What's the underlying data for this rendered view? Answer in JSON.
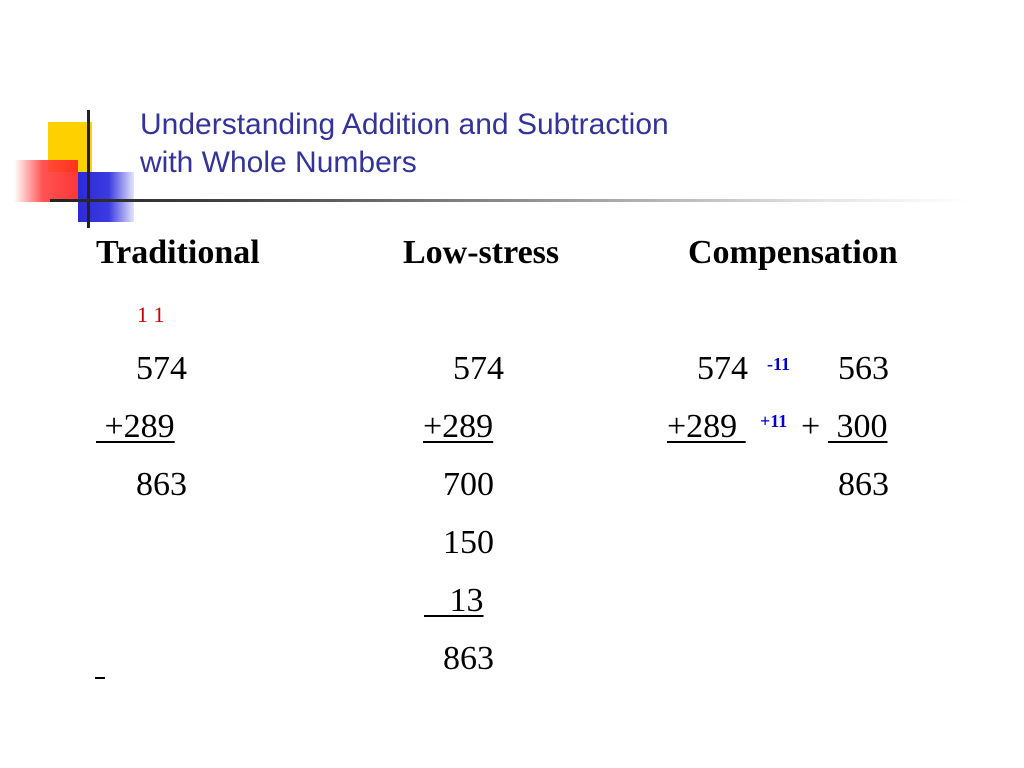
{
  "title": {
    "line1": "Understanding Addition and Subtraction",
    "line2": "with Whole Numbers"
  },
  "headers": {
    "traditional": "Traditional",
    "low_stress": "Low-stress",
    "compensation": "Compensation"
  },
  "traditional": {
    "carry": "1 1",
    "addend1": "574",
    "addend2": " +289",
    "sum": "863"
  },
  "low_stress": {
    "addend1": "574",
    "addend2": "+289",
    "partial1": "700",
    "partial2": "150",
    "partial3": "   13",
    "sum": "863"
  },
  "compensation": {
    "addend1": "574",
    "adjust1": "-11",
    "adjusted1": "563",
    "addend2": "+289 ",
    "adjust2": "+11",
    "plus": "+",
    "adjusted2": " 300",
    "sum": "863"
  },
  "colors": {
    "title": "#333399",
    "carry": "#cc0000",
    "adjustment": "#0000cc"
  }
}
